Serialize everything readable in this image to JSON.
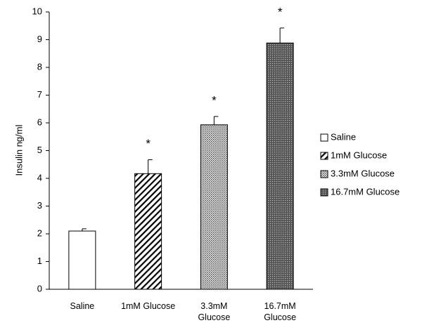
{
  "chart_data": {
    "type": "bar",
    "ylabel": "Insulin ng/ml",
    "categories": [
      "Saline",
      "1mM Glucose",
      "3.3mM Glucose",
      "16.7mM Glucose"
    ],
    "values": [
      2.1,
      4.17,
      5.93,
      8.88
    ],
    "errors": [
      0.08,
      0.5,
      0.3,
      0.54
    ],
    "annotations": [
      null,
      "*",
      "*",
      "*"
    ],
    "ylim": [
      0,
      10
    ],
    "yticks": [
      0,
      1,
      2,
      3,
      4,
      5,
      6,
      7,
      8,
      9,
      10
    ],
    "grid": false,
    "legend": "right"
  }
}
